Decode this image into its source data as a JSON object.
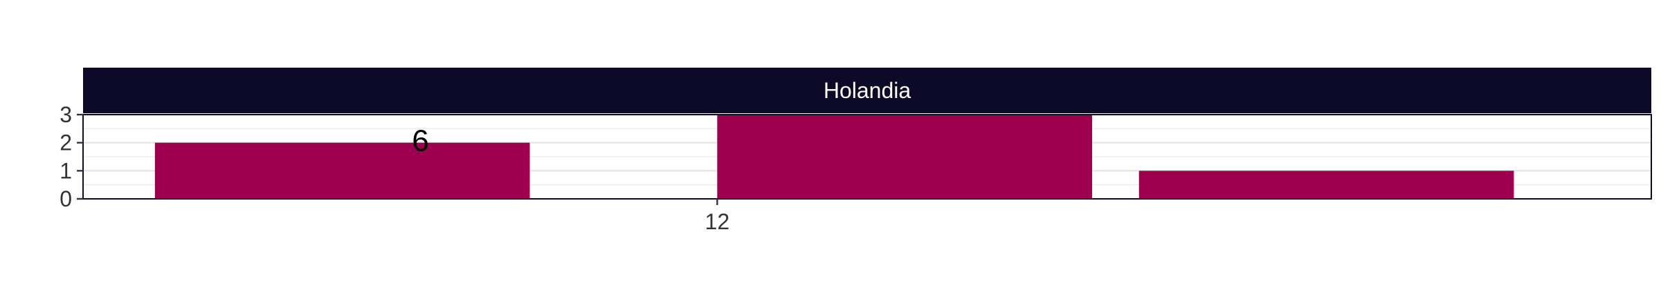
{
  "chart_data": {
    "type": "bar",
    "facet_label": "Holandia",
    "bars": [
      {
        "x_start": 10.2,
        "x_end": 11.4,
        "value": 2
      },
      {
        "x_start": 12.0,
        "x_end": 13.2,
        "value": 3
      },
      {
        "x_start": 13.35,
        "x_end": 14.55,
        "value": 1
      }
    ],
    "annotations": [
      {
        "text": "6",
        "x": 11.05,
        "y": 2.1
      }
    ],
    "x_ticks": [
      12
    ],
    "x_tick_labels": [
      "12"
    ],
    "y_ticks": [
      0,
      1,
      2,
      3
    ],
    "y_tick_labels": [
      "0",
      "1",
      "2",
      "3"
    ],
    "xlim": [
      9.97,
      14.99
    ],
    "ylim": [
      0,
      3
    ],
    "grid": true,
    "legend": "none",
    "title": "",
    "xlabel": "",
    "ylabel": "",
    "colors": {
      "bar": "#9e004f",
      "strip": "#0c0a28",
      "panel_border": "#0c0a28",
      "grid": "#e6e6e6"
    }
  }
}
